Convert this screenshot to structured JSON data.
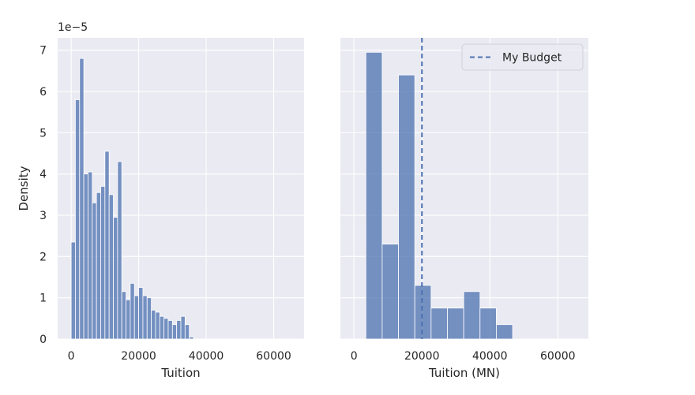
{
  "chart_data": [
    {
      "type": "bar",
      "subtype": "histogram",
      "title": "",
      "xlabel": "Tuition",
      "ylabel": "Density",
      "y_offset_label": "1e−5",
      "y_scale": 1e-05,
      "xlim": [
        -4000,
        69000
      ],
      "ylim": [
        0,
        7.3
      ],
      "xticks": [
        0,
        20000,
        40000,
        60000
      ],
      "xtick_labels": [
        "0",
        "20000",
        "40000",
        "60000"
      ],
      "yticks": [
        0,
        1,
        2,
        3,
        4,
        5,
        6,
        7
      ],
      "ytick_labels": [
        "0",
        "1",
        "2",
        "3",
        "4",
        "5",
        "6",
        "7"
      ],
      "grid": true,
      "bar_color": "#4c72b0",
      "bin_width": 1250,
      "bin_start": 0,
      "values": [
        2.35,
        5.8,
        6.8,
        4.0,
        4.05,
        3.3,
        3.55,
        3.7,
        4.55,
        3.5,
        2.95,
        4.3,
        1.15,
        0.95,
        1.35,
        1.05,
        1.25,
        1.05,
        1.0,
        0.7,
        0.65,
        0.55,
        0.5,
        0.45,
        0.35,
        0.45,
        0.55,
        0.35,
        0.05
      ]
    },
    {
      "type": "bar",
      "subtype": "histogram",
      "title": "",
      "xlabel": "Tuition (MN)",
      "ylabel": "",
      "y_scale": 1e-05,
      "xlim": [
        -4000,
        69000
      ],
      "ylim": [
        0,
        7.3
      ],
      "xticks": [
        0,
        20000,
        40000,
        60000
      ],
      "xtick_labels": [
        "0",
        "20000",
        "40000",
        "60000"
      ],
      "yticks": [
        0,
        1,
        2,
        3,
        4,
        5,
        6,
        7
      ],
      "show_ytick_labels": false,
      "grid": true,
      "bar_color": "#4c72b0",
      "bin_width": 4800,
      "bin_start": 3500,
      "values": [
        6.95,
        2.3,
        6.4,
        1.3,
        0.75,
        0.75,
        1.15,
        0.75,
        0.35
      ],
      "reference_line": {
        "x": 20000,
        "style": "dashed",
        "color": "#4c72b0",
        "legend": "My Budget"
      },
      "legend_position": "upper-right"
    }
  ]
}
